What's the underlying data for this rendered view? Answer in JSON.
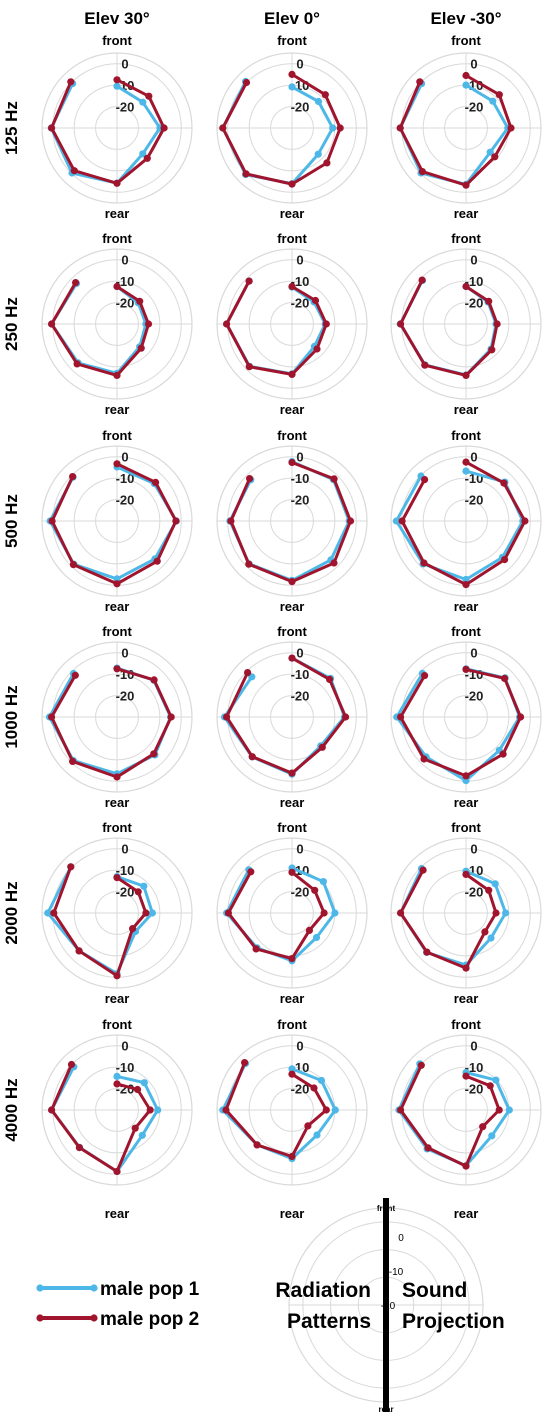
{
  "chart_data": {
    "type": "polar-line",
    "elevations": [
      "Elev 30°",
      "Elev 0°",
      "Elev -30°"
    ],
    "frequencies": [
      "125 Hz",
      "250 Hz",
      "500 Hz",
      "1000 Hz",
      "2000 Hz",
      "4000 Hz"
    ],
    "direction_labels": {
      "front": "front",
      "rear": "rear"
    },
    "r_ticks": [
      0,
      -10,
      -20
    ],
    "r_tick_labels": [
      "0",
      "-10",
      "-20"
    ],
    "r_range": [
      -30,
      5
    ],
    "angles_deg": [
      0,
      45,
      90,
      135,
      180,
      225,
      270,
      315
    ],
    "grid": true,
    "series_names": [
      "male pop 1",
      "male pop 2"
    ],
    "colors": {
      "male pop 1": "#4DB8E8",
      "male pop 2": "#A0152D",
      "grid": "#d9d9d9",
      "axis_line": "#000000"
    },
    "panels": [
      {
        "freq": "125 Hz",
        "elev": "Elev 30°",
        "male pop 1": [
          -10.5,
          -13,
          -10,
          -13,
          -4.3,
          -0.3,
          0.7,
          -0.7
        ],
        "male pop 2": [
          -7.5,
          -9,
          -8,
          -10,
          -4.2,
          -1.8,
          0.5,
          0.5
        ]
      },
      {
        "freq": "125 Hz",
        "elev": "Elev 0°",
        "male pop 1": [
          -10.8,
          -12.5,
          -11,
          -12.7,
          -4,
          0.7,
          2.3,
          0.7
        ],
        "male pop 2": [
          -5,
          -8,
          -7.5,
          -7,
          -3.8,
          0.3,
          2.3,
          0
        ]
      },
      {
        "freq": "125 Hz",
        "elev": "Elev -30°",
        "male pop 1": [
          -10,
          -12.3,
          -10.5,
          -14,
          -3.7,
          -0.3,
          0.7,
          -0.7
        ],
        "male pop 2": [
          -5.5,
          -8,
          -9,
          -11,
          -3.3,
          -1.2,
          0.7,
          0.5
        ]
      },
      {
        "freq": "250 Hz",
        "elev": "Elev 30°",
        "male pop 1": [
          -12.5,
          -16,
          -16.5,
          -15,
          -7,
          -4.3,
          0.5,
          -3.3
        ],
        "male pop 2": [
          -12.5,
          -15,
          -15.3,
          -14,
          -6,
          -3.7,
          0.5,
          -2.7
        ]
      },
      {
        "freq": "250 Hz",
        "elev": "Elev 0°",
        "male pop 1": [
          -12.8,
          -15.5,
          -14.5,
          -15.2,
          -6.7,
          -2,
          0.5,
          -1.7
        ],
        "male pop 2": [
          -12.5,
          -14.5,
          -14,
          -13.5,
          -6.5,
          -1.8,
          0.5,
          -1.7
        ]
      },
      {
        "freq": "250 Hz",
        "elev": "Elev -30°",
        "male pop 1": [
          -12.5,
          -15.5,
          -16,
          -13.5,
          -6.2,
          -3,
          0.7,
          -1.3
        ],
        "male pop 2": [
          -12.5,
          -15,
          -15.5,
          -13,
          -6,
          -2.8,
          0.5,
          -1
        ]
      },
      {
        "freq": "500 Hz",
        "elev": "Elev 30°",
        "male pop 1": [
          -4.8,
          -5.3,
          -2.3,
          -5,
          -3,
          -1.5,
          1.2,
          -1
        ],
        "male pop 2": [
          -3.3,
          -4.5,
          -2.5,
          -3.5,
          -0.7,
          -1.2,
          0.3,
          -0.7
        ]
      },
      {
        "freq": "500 Hz",
        "elev": "Elev 0°",
        "male pop 1": [
          -2.3,
          -2.7,
          -3.3,
          -4.3,
          -2.3,
          -1.7,
          -1,
          -2.8
        ],
        "male pop 2": [
          -2.7,
          -2.2,
          -2.7,
          -2.3,
          -1.7,
          -1.5,
          -1.5,
          -2
        ]
      },
      {
        "freq": "500 Hz",
        "elev": "Elev -30°",
        "male pop 1": [
          -6.7,
          -4.3,
          -3.5,
          -6,
          -2.7,
          -1.7,
          2.5,
          -0.3
        ],
        "male pop 2": [
          -2.5,
          -5,
          -2.5,
          -4.5,
          -0.3,
          -2.3,
          -0.2,
          -2.7
        ]
      },
      {
        "freq": "1000 Hz",
        "elev": "Elev 30°",
        "male pop 1": [
          -7.2,
          -5.7,
          -5,
          -5,
          -3.5,
          -1.2,
          1.5,
          -1.3
        ],
        "male pop 2": [
          -7.5,
          -5.5,
          -4.7,
          -5.7,
          -2,
          -0.7,
          0.5,
          -2.5
        ]
      },
      {
        "freq": "1000 Hz",
        "elev": "Elev 0°",
        "male pop 1": [
          -2.5,
          -4.5,
          -5.5,
          -11,
          -3.3,
          -3.7,
          1.5,
          -3.5
        ],
        "male pop 2": [
          -2.5,
          -5.2,
          -5,
          -10,
          -3.8,
          -3.8,
          0.5,
          -0.7
        ]
      },
      {
        "freq": "1000 Hz",
        "elev": "Elev -30°",
        "male pop 1": [
          -7.5,
          -4.2,
          -5,
          -8,
          -0.3,
          -3.7,
          2.3,
          -1.2
        ],
        "male pop 2": [
          -7.8,
          -4.5,
          -4.5,
          -5.5,
          -2.5,
          -2.3,
          0.5,
          -2.7
        ]
      },
      {
        "freq": "2000 Hz",
        "elev": "Elev 30°",
        "male pop 1": [
          -13,
          -12.3,
          -13.5,
          -17.8,
          -1.7,
          -5,
          2.3,
          0.5
        ],
        "male pop 2": [
          -13.5,
          -16,
          -16.5,
          -19.7,
          -0.7,
          -5,
          -0.5,
          0.5
        ]
      },
      {
        "freq": "2000 Hz",
        "elev": "Elev 0°",
        "male pop 1": [
          -9,
          -9.3,
          -10,
          -13.8,
          -7.7,
          -7,
          0.5,
          -1.5
        ],
        "male pop 2": [
          -11,
          -15,
          -15,
          -18.5,
          -8.7,
          -6.3,
          -0.3,
          -2.8
        ]
      },
      {
        "freq": "2000 Hz",
        "elev": "Elev -30°",
        "male pop 1": [
          -10.5,
          -10.7,
          -11.5,
          -13.5,
          -5.7,
          -4,
          0.5,
          -0.6
        ],
        "male pop 2": [
          -12,
          -15,
          -16,
          -17.5,
          -4.3,
          -4.2,
          0.5,
          -1.7
        ]
      },
      {
        "freq": "4000 Hz",
        "elev": "Elev 30°",
        "male pop 1": [
          -14.3,
          -12,
          -11,
          -13.3,
          -1.3,
          -5.3,
          0.5,
          -1.5
        ],
        "male pop 2": [
          -17.8,
          -16.5,
          -14.5,
          -18,
          -1.3,
          -5.2,
          0.5,
          0
        ]
      },
      {
        "freq": "4000 Hz",
        "elev": "Elev 0°",
        "male pop 1": [
          -10.8,
          -10.5,
          -9.8,
          -13.5,
          -7.3,
          -7,
          2.3,
          0.7
        ],
        "male pop 2": [
          -13.3,
          -15.5,
          -14,
          -19.5,
          -8.3,
          -7,
          0.8,
          1.3
        ]
      },
      {
        "freq": "4000 Hz",
        "elev": "Elev -30°",
        "male pop 1": [
          -12.5,
          -10.3,
          -9.8,
          -13,
          -4,
          -4.3,
          1.3,
          0.5
        ],
        "male pop 2": [
          -14.2,
          -14,
          -14.5,
          -19,
          -3.8,
          -5,
          0.5,
          -0.5
        ]
      }
    ]
  },
  "legend": {
    "items": [
      {
        "label": "male pop 1",
        "color": "#4DB8E8"
      },
      {
        "label": "male pop 2",
        "color": "#A0152D"
      }
    ]
  },
  "explainer": {
    "left_text": [
      "Radiation",
      "Patterns"
    ],
    "right_text": [
      "Sound",
      "Projection"
    ],
    "front_label": "front",
    "rear_label": "rear",
    "tick_labels": [
      "0",
      "-10",
      "-20"
    ]
  }
}
